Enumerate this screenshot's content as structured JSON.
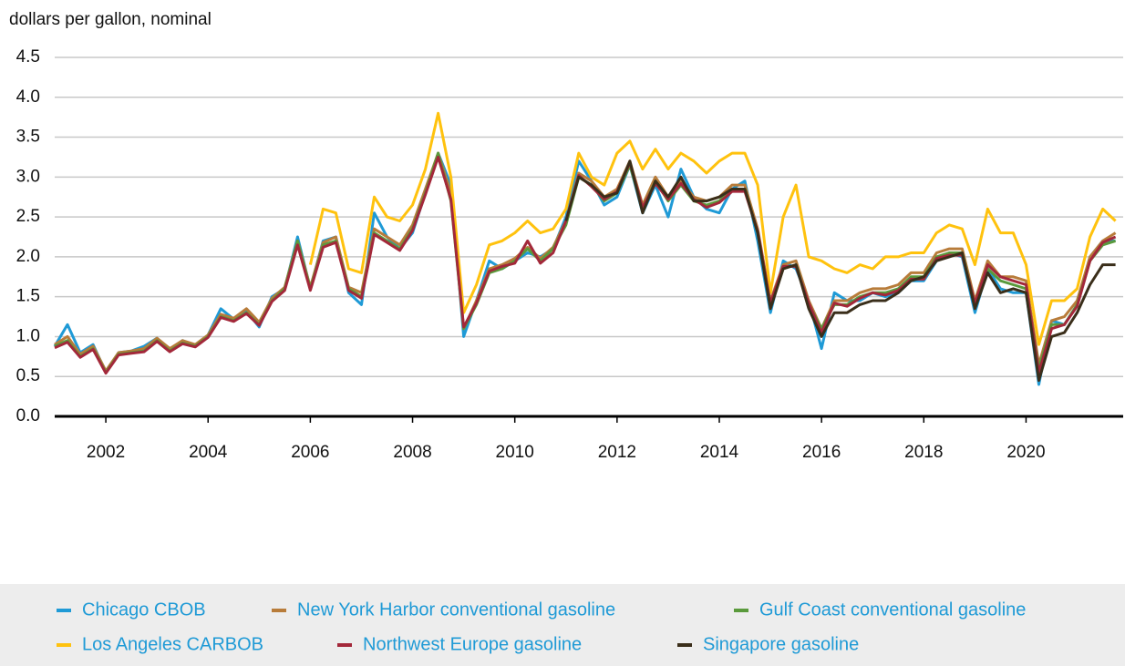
{
  "chart_data": {
    "type": "line",
    "y_label": "dollars per gallon, nominal",
    "x": [
      2001,
      2001.25,
      2001.5,
      2001.75,
      2002,
      2002.25,
      2002.5,
      2002.75,
      2003,
      2003.25,
      2003.5,
      2003.75,
      2004,
      2004.25,
      2004.5,
      2004.75,
      2005,
      2005.25,
      2005.5,
      2005.75,
      2006,
      2006.25,
      2006.5,
      2006.75,
      2007,
      2007.25,
      2007.5,
      2007.75,
      2008,
      2008.25,
      2008.5,
      2008.75,
      2009,
      2009.25,
      2009.5,
      2009.75,
      2010,
      2010.25,
      2010.5,
      2010.75,
      2011,
      2011.25,
      2011.5,
      2011.75,
      2012,
      2012.25,
      2012.5,
      2012.75,
      2013,
      2013.25,
      2013.5,
      2013.75,
      2014,
      2014.25,
      2014.5,
      2014.75,
      2015,
      2015.25,
      2015.5,
      2015.75,
      2016,
      2016.25,
      2016.5,
      2016.75,
      2017,
      2017.25,
      2017.5,
      2017.75,
      2018,
      2018.25,
      2018.5,
      2018.75,
      2019,
      2019.25,
      2019.5,
      2019.75,
      2020,
      2020.25,
      2020.5,
      2020.75,
      2021,
      2021.25,
      2021.5,
      2021.75
    ],
    "series": [
      {
        "name": "Chicago CBOB",
        "color": "#1f9ad6",
        "values": [
          0.88,
          1.15,
          0.8,
          0.9,
          0.55,
          0.8,
          0.82,
          0.88,
          0.98,
          0.82,
          0.95,
          0.88,
          1.02,
          1.35,
          1.22,
          1.32,
          1.12,
          1.5,
          1.6,
          2.25,
          1.6,
          2.2,
          2.25,
          1.55,
          1.4,
          2.55,
          2.25,
          2.1,
          2.3,
          2.8,
          3.3,
          2.9,
          1.0,
          1.45,
          1.95,
          1.85,
          1.95,
          2.05,
          2.0,
          2.1,
          2.5,
          3.2,
          2.95,
          2.65,
          2.75,
          3.15,
          2.55,
          2.9,
          2.5,
          3.1,
          2.75,
          2.6,
          2.55,
          2.85,
          2.95,
          2.2,
          1.3,
          1.95,
          1.85,
          1.45,
          0.85,
          1.55,
          1.45,
          1.45,
          1.55,
          1.5,
          1.55,
          1.7,
          1.7,
          1.95,
          2.05,
          2.0,
          1.3,
          1.85,
          1.6,
          1.55,
          1.55,
          0.4,
          1.2,
          1.15,
          1.4,
          2.0,
          2.2,
          2.2
        ]
      },
      {
        "name": "New York Harbor conventional gasoline",
        "color": "#b87c3a",
        "values": [
          0.9,
          1.0,
          0.78,
          0.88,
          0.57,
          0.8,
          0.82,
          0.85,
          0.98,
          0.85,
          0.95,
          0.9,
          1.02,
          1.28,
          1.23,
          1.35,
          1.18,
          1.48,
          1.62,
          2.2,
          1.62,
          2.18,
          2.25,
          1.62,
          1.55,
          2.35,
          2.25,
          2.15,
          2.4,
          2.85,
          3.3,
          2.8,
          1.1,
          1.45,
          1.85,
          1.9,
          1.98,
          2.12,
          1.98,
          2.12,
          2.45,
          3.05,
          2.95,
          2.75,
          2.85,
          3.2,
          2.65,
          3.0,
          2.75,
          2.95,
          2.75,
          2.7,
          2.75,
          2.9,
          2.9,
          2.35,
          1.45,
          1.9,
          1.95,
          1.45,
          1.1,
          1.45,
          1.45,
          1.55,
          1.6,
          1.6,
          1.65,
          1.8,
          1.8,
          2.05,
          2.1,
          2.1,
          1.45,
          1.95,
          1.75,
          1.75,
          1.7,
          0.65,
          1.2,
          1.25,
          1.45,
          2.0,
          2.2,
          2.3
        ]
      },
      {
        "name": "Gulf Coast conventional gasoline",
        "color": "#5a9a3c",
        "values": [
          0.88,
          0.95,
          0.75,
          0.85,
          0.55,
          0.78,
          0.8,
          0.82,
          0.95,
          0.82,
          0.92,
          0.88,
          1.0,
          1.25,
          1.2,
          1.3,
          1.15,
          1.45,
          1.6,
          2.2,
          1.6,
          2.15,
          2.2,
          1.6,
          1.5,
          2.3,
          2.2,
          2.1,
          2.35,
          2.8,
          3.3,
          2.7,
          1.1,
          1.4,
          1.8,
          1.85,
          1.95,
          2.1,
          1.95,
          2.1,
          2.4,
          3.0,
          2.9,
          2.7,
          2.8,
          3.15,
          2.6,
          2.95,
          2.7,
          2.9,
          2.7,
          2.65,
          2.7,
          2.85,
          2.85,
          2.3,
          1.4,
          1.85,
          1.9,
          1.4,
          1.1,
          1.4,
          1.4,
          1.5,
          1.55,
          1.55,
          1.6,
          1.75,
          1.75,
          2.0,
          2.05,
          2.05,
          1.4,
          1.85,
          1.7,
          1.65,
          1.6,
          0.6,
          1.15,
          1.15,
          1.4,
          1.95,
          2.15,
          2.2
        ]
      },
      {
        "name": "Los Angeles CARBOB",
        "color": "#ffc20e",
        "values": [
          null,
          null,
          null,
          null,
          null,
          null,
          null,
          null,
          null,
          null,
          null,
          null,
          null,
          null,
          null,
          null,
          null,
          null,
          null,
          null,
          1.9,
          2.6,
          2.55,
          1.85,
          1.8,
          2.75,
          2.5,
          2.45,
          2.65,
          3.1,
          3.8,
          3.0,
          1.3,
          1.65,
          2.15,
          2.2,
          2.3,
          2.45,
          2.3,
          2.35,
          2.6,
          3.3,
          3.0,
          2.9,
          3.3,
          3.45,
          3.1,
          3.35,
          3.1,
          3.3,
          3.2,
          3.05,
          3.2,
          3.3,
          3.3,
          2.9,
          1.55,
          2.5,
          2.9,
          2.0,
          1.95,
          1.85,
          1.8,
          1.9,
          1.85,
          2.0,
          2.0,
          2.05,
          2.05,
          2.3,
          2.4,
          2.35,
          1.9,
          2.6,
          2.3,
          2.3,
          1.9,
          0.9,
          1.45,
          1.45,
          1.6,
          2.25,
          2.6,
          2.45
        ]
      },
      {
        "name": "Northwest Europe gasoline",
        "color": "#a3283a",
        "values": [
          0.86,
          0.93,
          0.74,
          0.84,
          0.54,
          0.77,
          0.79,
          0.81,
          0.94,
          0.81,
          0.91,
          0.87,
          0.99,
          1.24,
          1.19,
          1.29,
          1.14,
          1.44,
          1.58,
          2.15,
          1.58,
          2.12,
          2.18,
          1.58,
          1.48,
          2.28,
          2.18,
          2.08,
          2.33,
          2.78,
          3.25,
          2.72,
          1.12,
          1.42,
          1.82,
          1.88,
          1.92,
          2.2,
          1.92,
          2.05,
          2.45,
          3.02,
          2.88,
          2.72,
          2.82,
          3.18,
          2.62,
          2.92,
          2.72,
          2.92,
          2.72,
          2.62,
          2.68,
          2.82,
          2.82,
          2.32,
          1.42,
          1.88,
          1.88,
          1.42,
          1.05,
          1.42,
          1.38,
          1.48,
          1.55,
          1.52,
          1.58,
          1.72,
          1.72,
          1.98,
          2.02,
          2.02,
          1.42,
          1.9,
          1.75,
          1.7,
          1.65,
          0.55,
          1.1,
          1.15,
          1.38,
          1.95,
          2.18,
          2.25
        ]
      },
      {
        "name": "Singapore gasoline",
        "color": "#3a2e1a",
        "values": [
          null,
          null,
          null,
          null,
          null,
          null,
          null,
          null,
          null,
          null,
          null,
          null,
          null,
          null,
          null,
          null,
          null,
          null,
          null,
          null,
          null,
          null,
          null,
          null,
          null,
          null,
          null,
          null,
          null,
          null,
          null,
          null,
          null,
          null,
          null,
          null,
          null,
          null,
          null,
          null,
          2.45,
          3.0,
          2.9,
          2.75,
          2.8,
          3.2,
          2.55,
          2.95,
          2.75,
          3.0,
          2.7,
          2.7,
          2.75,
          2.85,
          2.85,
          2.3,
          1.35,
          1.85,
          1.9,
          1.35,
          1.0,
          1.3,
          1.3,
          1.4,
          1.45,
          1.45,
          1.55,
          1.7,
          1.75,
          1.95,
          2.0,
          2.05,
          1.35,
          1.8,
          1.55,
          1.6,
          1.55,
          0.45,
          1.0,
          1.05,
          1.3,
          1.65,
          1.9,
          1.9
        ]
      }
    ],
    "xlim": [
      2001,
      2021.9
    ],
    "xticks": [
      2002,
      2004,
      2006,
      2008,
      2010,
      2012,
      2014,
      2016,
      2018,
      2020
    ],
    "ylim": [
      0,
      4.5
    ],
    "yticks": [
      {
        "value": 0,
        "label": "0.0"
      },
      0.5,
      {
        "value": 1,
        "label": "1.0"
      },
      1.5,
      {
        "value": 2,
        "label": "2.0"
      },
      2.5,
      {
        "value": 3,
        "label": "3.0"
      },
      3.5,
      {
        "value": 4,
        "label": "4.0"
      },
      4.5
    ],
    "grid": true,
    "legend": "bottom"
  }
}
